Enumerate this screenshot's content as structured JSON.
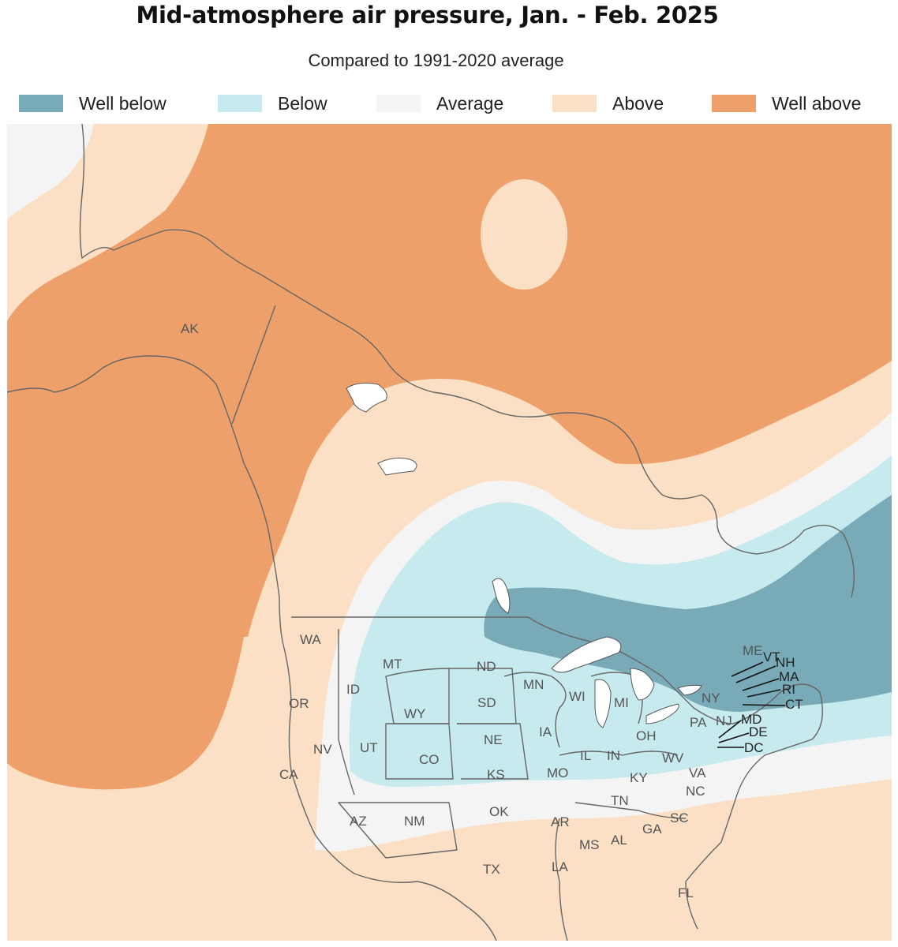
{
  "title": "Mid-atmosphere air pressure, Jan. - Feb. 2025",
  "subtitle": "Compared to 1991-2020 average",
  "legend": [
    {
      "label": "Well below",
      "color": "#78aab8"
    },
    {
      "label": "Below",
      "color": "#c6eaee"
    },
    {
      "label": "Average",
      "color": "#f4f4f4"
    },
    {
      "label": "Above",
      "color": "#fbe0c5"
    },
    {
      "label": "Well above",
      "color": "#eea06a"
    }
  ],
  "regions": {
    "alaska": "AK",
    "states": [
      "WA",
      "OR",
      "CA",
      "ID",
      "NV",
      "MT",
      "WY",
      "UT",
      "AZ",
      "CO",
      "NM",
      "ND",
      "SD",
      "NE",
      "KS",
      "OK",
      "TX",
      "MN",
      "IA",
      "MO",
      "AR",
      "LA",
      "WI",
      "IL",
      "MI",
      "IN",
      "OH",
      "KY",
      "TN",
      "MS",
      "AL",
      "GA",
      "FL",
      "SC",
      "NC",
      "VA",
      "WV",
      "PA",
      "NY",
      "NJ",
      "ME"
    ],
    "northeast_callouts": [
      "VT",
      "NH",
      "MA",
      "RI",
      "CT",
      "MD",
      "DE",
      "DC"
    ]
  }
}
